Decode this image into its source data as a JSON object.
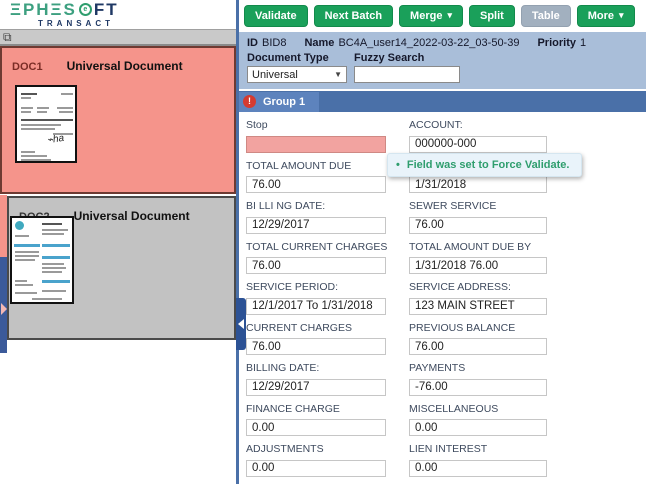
{
  "logo": {
    "brand_part1": "ΞPHΞS",
    "brand_ring_letter": "e",
    "brand_part2": "FT",
    "sub": "TRANSACT"
  },
  "toolbar": {
    "buttons": [
      {
        "label": "Validate",
        "caret": false,
        "disabled": false
      },
      {
        "label": "Next Batch",
        "caret": false,
        "disabled": false
      },
      {
        "label": "Merge",
        "caret": true,
        "disabled": false
      },
      {
        "label": "Split",
        "caret": false,
        "disabled": false
      },
      {
        "label": "Table",
        "caret": false,
        "disabled": true
      },
      {
        "label": "More",
        "caret": true,
        "disabled": false
      }
    ]
  },
  "meta": {
    "id_label": "ID",
    "id_value": "BID8",
    "name_label": "Name",
    "name_value": "BC4A_user14_2022-03-22_03-50-39",
    "priority_label": "Priority",
    "priority_value": "1",
    "document_type_label": "Document Type",
    "document_type_value": "Universal",
    "fuzzy_search_label": "Fuzzy Search",
    "fuzzy_search_value": ""
  },
  "group_tab": {
    "label": "Group 1",
    "error_glyph": "!"
  },
  "tooltip": {
    "bullet": "•",
    "text": "Field was set to Force Validate."
  },
  "documents": [
    {
      "id": "DOC1",
      "type": "Universal Document"
    },
    {
      "id": "DOC2",
      "type": "Universal Document"
    }
  ],
  "form": {
    "left_fields": [
      {
        "label": "Stop",
        "value": "",
        "invalid": true
      },
      {
        "label": "TOTAL AMOUNT DUE",
        "value": "76.00"
      },
      {
        "label": "BI LLI NG DATE:",
        "value": "12/29/2017"
      },
      {
        "label": "TOTAL CURRENT CHARGES",
        "value": "76.00"
      },
      {
        "label": "SERVICE PERIOD:",
        "value": "12/1/2017 To 1/31/2018"
      },
      {
        "label": "CURRENT CHARGES",
        "value": "76.00"
      },
      {
        "label": "BILLING DATE:",
        "value": "12/29/2017"
      },
      {
        "label": "FINANCE CHARGE",
        "value": "0.00"
      },
      {
        "label": "ADJUSTMENTS",
        "value": "0.00"
      }
    ],
    "right_fields": [
      {
        "label": "ACCOUNT:",
        "value": "000000-000"
      },
      {
        "label": "",
        "value": "1/31/2018"
      },
      {
        "label": "SEWER SERVICE",
        "value": "76.00"
      },
      {
        "label": "TOTAL AMOUNT DUE BY",
        "value": "1/31/2018 76.00"
      },
      {
        "label": "SERVICE ADDRESS:",
        "value": "123 MAIN STREET"
      },
      {
        "label": "PREVIOUS BALANCE",
        "value": "76.00"
      },
      {
        "label": "PAYMENTS",
        "value": "-76.00"
      },
      {
        "label": "MISCELLANEOUS",
        "value": "0.00"
      },
      {
        "label": "LIEN INTEREST",
        "value": "0.00"
      }
    ]
  }
}
